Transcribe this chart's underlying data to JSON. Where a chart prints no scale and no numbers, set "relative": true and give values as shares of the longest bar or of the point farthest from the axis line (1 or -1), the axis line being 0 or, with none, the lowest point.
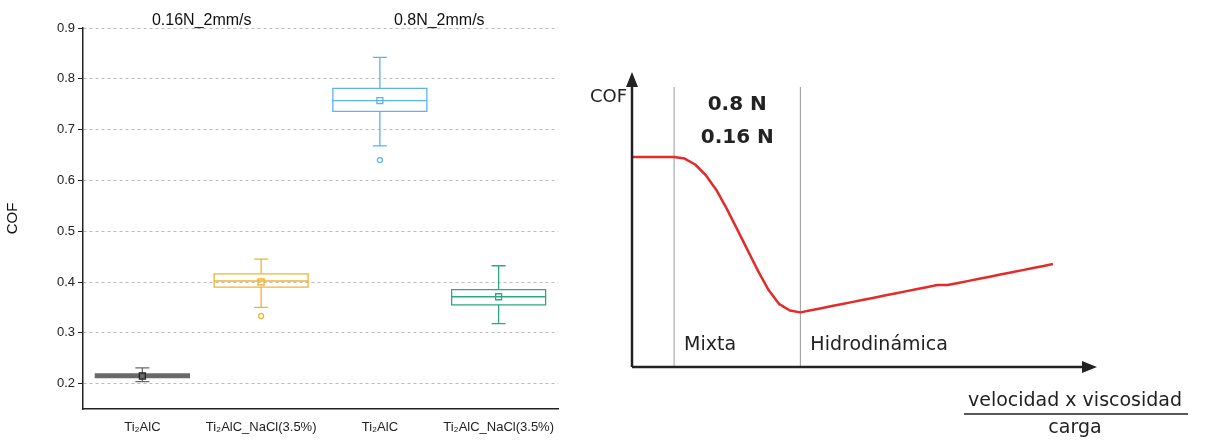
{
  "chart_data": [
    {
      "type": "box",
      "ylabel": "COF",
      "categories": [
        "Ti₂AlC",
        "Ti₂AlC_NaCl(3.5%)",
        "Ti₂AlC",
        "Ti₂AlC_NaCl(3.5%)"
      ],
      "boxes": [
        {
          "low": 0.204,
          "q1": 0.212,
          "median": 0.215,
          "q3": 0.219,
          "high": 0.231,
          "mean": 0.215
        },
        {
          "low": 0.35,
          "q1": 0.39,
          "median": 0.402,
          "q3": 0.416,
          "high": 0.445,
          "mean": 0.4,
          "outliers": [
            0.333
          ]
        },
        {
          "low": 0.668,
          "q1": 0.736,
          "median": 0.757,
          "q3": 0.781,
          "high": 0.842,
          "mean": 0.757,
          "outliers": [
            0.64
          ]
        },
        {
          "low": 0.318,
          "q1": 0.355,
          "median": 0.371,
          "q3": 0.385,
          "high": 0.432,
          "mean": 0.371
        }
      ],
      "colors": [
        "#6a6a6a",
        "#f0b233",
        "#5ab4ee",
        "#2ea87c"
      ],
      "ylim": [
        0.15,
        0.9
      ],
      "yticks": [
        0.2,
        0.3,
        0.4,
        0.5,
        0.6,
        0.7,
        0.8,
        0.9
      ],
      "grid": "y",
      "legend": false,
      "annotations": [
        "0.16N_2mm/s",
        "0.8N_2mm/s"
      ]
    },
    {
      "type": "line",
      "relative": true,
      "ylabel": "COF",
      "xlabel": "velocidad x viscosidad",
      "legend": false,
      "marker": "none",
      "line_style": "solid",
      "categories": [
        null,
        null,
        null,
        null,
        null,
        null,
        null,
        null,
        null,
        null,
        null,
        null,
        null,
        null,
        null,
        null,
        null,
        null,
        null,
        null,
        null,
        null,
        null,
        null,
        null,
        null,
        null,
        null,
        null,
        null,
        null,
        null,
        null,
        null,
        null,
        null,
        null,
        null,
        null,
        null,
        null,
        null,
        null,
        null,
        null
      ],
      "series": [
        {
          "color": "#e32b2b",
          "values": [
            1,
            1,
            1,
            1,
            1,
            0.992,
            0.964,
            0.914,
            0.844,
            0.754,
            0.655,
            0.555,
            0.455,
            0.365,
            0.299,
            0.269,
            0.26,
            0.27,
            0.28,
            0.29,
            0.3,
            0.31,
            0.32,
            0.33,
            0.34,
            0.35,
            0.36,
            0.37,
            0.38,
            0.39,
            0.39,
            0.4,
            0.41,
            0.42,
            0.43,
            0.44,
            0.45,
            0.46,
            0.47,
            0.48,
            0.49,
            null,
            null,
            null,
            null
          ]
        }
      ],
      "annotations": [
        "0.8 N",
        "0.16 N",
        "Mixta",
        "Hidrodinámica",
        "carga"
      ]
    }
  ]
}
